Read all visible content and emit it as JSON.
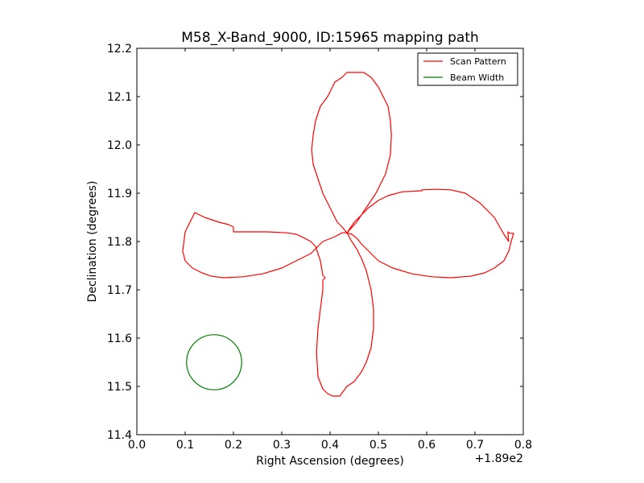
{
  "chart_data": {
    "type": "line",
    "title": "M58_X-Band_9000, ID:15965 mapping path",
    "xlabel": "Right Ascension (degrees)",
    "ylabel": "Declination (degrees)",
    "x_offset_label": "+1.89e2",
    "xlim": [
      0.0,
      0.8
    ],
    "ylim": [
      11.4,
      12.2
    ],
    "x_ticks": [
      "0.0",
      "0.1",
      "0.2",
      "0.3",
      "0.4",
      "0.5",
      "0.6",
      "0.7",
      "0.8"
    ],
    "y_ticks": [
      "11.4",
      "11.5",
      "11.6",
      "11.7",
      "11.8",
      "11.9",
      "12.0",
      "12.1",
      "12.2"
    ],
    "x_tick_values": [
      0.0,
      0.1,
      0.2,
      0.3,
      0.4,
      0.5,
      0.6,
      0.7,
      0.8
    ],
    "y_tick_values": [
      11.4,
      11.5,
      11.6,
      11.7,
      11.8,
      11.9,
      12.0,
      12.1,
      12.2
    ],
    "grid": false,
    "legend_position": "top-right",
    "series": [
      {
        "name": "Scan Pattern",
        "color": "#ff0000",
        "x": [
          0.435,
          0.455,
          0.475,
          0.495,
          0.515,
          0.525,
          0.527,
          0.525,
          0.52,
          0.51,
          0.5,
          0.485,
          0.47,
          0.46,
          0.45,
          0.44,
          0.435,
          0.425,
          0.41,
          0.395,
          0.38,
          0.37,
          0.365,
          0.362,
          0.365,
          0.375,
          0.385,
          0.395,
          0.405,
          0.415,
          0.425,
          0.435,
          0.45,
          0.465,
          0.48,
          0.5,
          0.52,
          0.55,
          0.59,
          0.59,
          0.62,
          0.65,
          0.68,
          0.71,
          0.74,
          0.76,
          0.77,
          0.768,
          0.772,
          0.78,
          0.775,
          0.77,
          0.76,
          0.74,
          0.72,
          0.69,
          0.65,
          0.61,
          0.57,
          0.53,
          0.5,
          0.48,
          0.465,
          0.455,
          0.445,
          0.435,
          0.445,
          0.455,
          0.465,
          0.475,
          0.485,
          0.49,
          0.49,
          0.485,
          0.475,
          0.465,
          0.45,
          0.435,
          0.42,
          0.405,
          0.395,
          0.385,
          0.375,
          0.372,
          0.375,
          0.38,
          0.385,
          0.385,
          0.39,
          0.385,
          0.38,
          0.37,
          0.36,
          0.345,
          0.33,
          0.31,
          0.27,
          0.23,
          0.2,
          0.2,
          0.19,
          0.17,
          0.14,
          0.12,
          0.1,
          0.095,
          0.1,
          0.115,
          0.135,
          0.155,
          0.18,
          0.22,
          0.26,
          0.3,
          0.33,
          0.36,
          0.385,
          0.41,
          0.425,
          0.435
        ],
        "y": [
          11.818,
          11.84,
          11.87,
          11.9,
          11.94,
          11.98,
          12.02,
          12.05,
          12.08,
          12.1,
          12.12,
          12.14,
          12.15,
          12.15,
          12.15,
          12.15,
          12.15,
          12.14,
          12.13,
          12.1,
          12.08,
          12.05,
          12.02,
          11.99,
          11.96,
          11.93,
          11.9,
          11.88,
          11.86,
          11.84,
          11.83,
          11.818,
          11.84,
          11.855,
          11.87,
          11.885,
          11.895,
          11.903,
          11.905,
          11.907,
          11.908,
          11.907,
          11.9,
          11.88,
          11.85,
          11.815,
          11.8,
          11.82,
          11.817,
          11.817,
          11.8,
          11.78,
          11.76,
          11.745,
          11.735,
          11.728,
          11.725,
          11.727,
          11.733,
          11.745,
          11.76,
          11.78,
          11.795,
          11.807,
          11.815,
          11.818,
          11.8,
          11.785,
          11.765,
          11.74,
          11.7,
          11.66,
          11.62,
          11.58,
          11.55,
          11.53,
          11.51,
          11.5,
          11.48,
          11.48,
          11.485,
          11.495,
          11.52,
          11.57,
          11.62,
          11.66,
          11.7,
          11.72,
          11.725,
          11.73,
          11.76,
          11.79,
          11.8,
          11.808,
          11.815,
          11.818,
          11.82,
          11.82,
          11.82,
          11.83,
          11.835,
          11.84,
          11.85,
          11.86,
          11.82,
          11.78,
          11.76,
          11.745,
          11.735,
          11.728,
          11.725,
          11.727,
          11.733,
          11.745,
          11.76,
          11.775,
          11.8,
          11.81,
          11.818,
          11.818
        ]
      },
      {
        "name": "Beam Width",
        "color": "#008000",
        "shape": "circle",
        "center": [
          0.16,
          11.55
        ],
        "radius": 0.057
      }
    ]
  }
}
